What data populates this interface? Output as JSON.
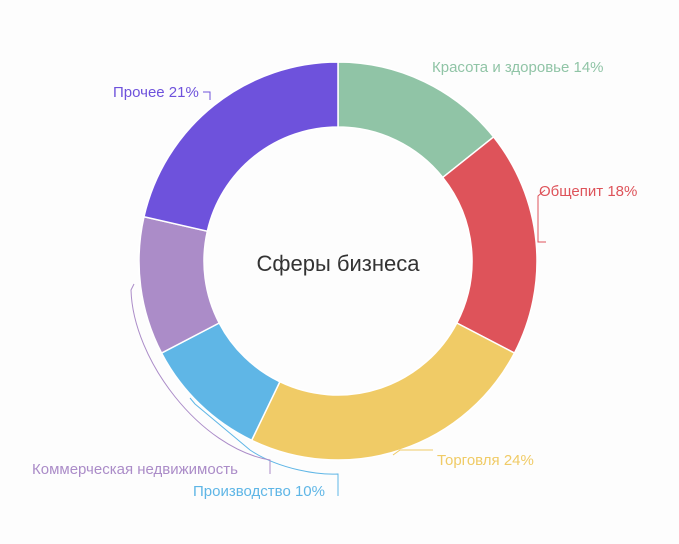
{
  "chart_data": {
    "type": "pie",
    "variant": "donut",
    "title": "Сферы бизнеса",
    "series": [
      {
        "label": "Красота и здоровье 14%",
        "value": 14,
        "color": "#90c4a6"
      },
      {
        "label": "Общепит 18%",
        "value": 18,
        "color": "#de535a"
      },
      {
        "label": "Торговля 24%",
        "value": 24,
        "color": "#f0cb66"
      },
      {
        "label": "Производство 10%",
        "value": 10,
        "color": "#5fb6e6"
      },
      {
        "label": "Коммерческая недвижимость",
        "value": 11,
        "color": "#ab8cc8"
      },
      {
        "label": "Прочее 21%",
        "value": 21,
        "color": "#6e52dc"
      }
    ]
  }
}
